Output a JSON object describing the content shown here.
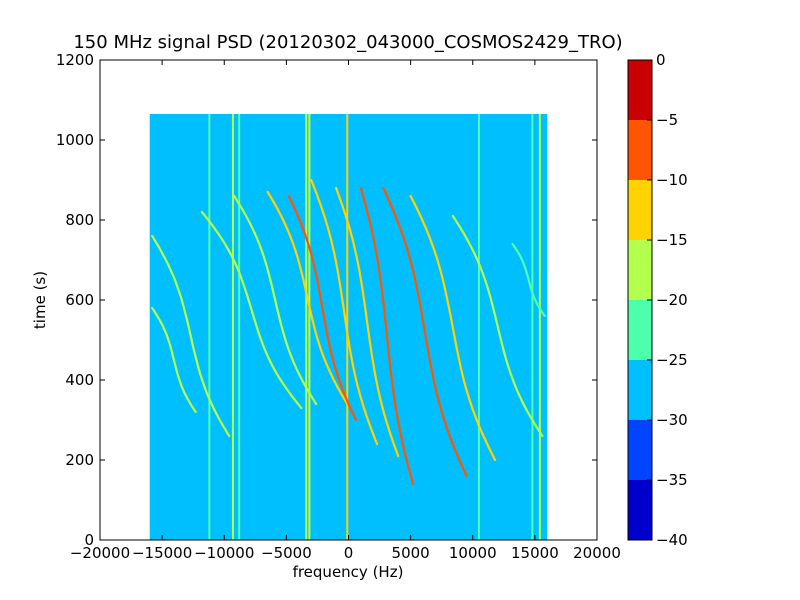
{
  "chart_data": {
    "type": "heatmap",
    "title": "150 MHz signal PSD (20120302_043000_COSMOS2429_TRO)",
    "xlabel": "frequency (Hz)",
    "ylabel": "time (s)",
    "xlim": [
      -20000,
      20000
    ],
    "ylim": [
      0,
      1200
    ],
    "xticks": [
      -20000,
      -15000,
      -10000,
      -5000,
      0,
      5000,
      10000,
      15000,
      20000
    ],
    "yticks": [
      0,
      200,
      400,
      600,
      800,
      1000,
      1200
    ],
    "data_extent": {
      "x": [
        -16000,
        16000
      ],
      "y": [
        0,
        1065
      ]
    },
    "colorbar": {
      "range": [
        -40,
        0
      ],
      "ticks": [
        0,
        -5,
        -10,
        -15,
        -20,
        -25,
        -30,
        -35,
        -40
      ],
      "levels": [
        {
          "from": -40,
          "to": -35,
          "color": "#0000cd"
        },
        {
          "from": -35,
          "to": -30,
          "color": "#0044ff"
        },
        {
          "from": -30,
          "to": -25,
          "color": "#00bfff"
        },
        {
          "from": -25,
          "to": -20,
          "color": "#4dffaa"
        },
        {
          "from": -20,
          "to": -15,
          "color": "#b3ff4d"
        },
        {
          "from": -15,
          "to": -10,
          "color": "#ffd200"
        },
        {
          "from": -10,
          "to": -5,
          "color": "#ff5500"
        },
        {
          "from": -5,
          "to": 0,
          "color": "#c80000"
        }
      ]
    },
    "background_level": -28,
    "constant_lines": [
      {
        "x": -11200,
        "level": -25
      },
      {
        "x": -9300,
        "level": -20
      },
      {
        "x": -8800,
        "level": -23
      },
      {
        "x": -3400,
        "level": -18
      },
      {
        "x": -3150,
        "level": -20
      },
      {
        "x": -100,
        "level": -15
      },
      {
        "x": 10500,
        "level": -23
      },
      {
        "x": 14800,
        "level": -22
      },
      {
        "x": 15400,
        "level": -20
      }
    ],
    "doppler_traces": [
      {
        "x_start": -15800,
        "x_end": -12300,
        "t_start": 580,
        "t_end": 320,
        "level": -18
      },
      {
        "x_start": -15800,
        "x_end": -9600,
        "t_start": 760,
        "t_end": 260,
        "level": -20
      },
      {
        "x_start": -11800,
        "x_end": -3800,
        "t_start": 820,
        "t_end": 330,
        "level": -18
      },
      {
        "x_start": -9200,
        "x_end": -2600,
        "t_start": 860,
        "t_end": 340,
        "level": -18
      },
      {
        "x_start": -6500,
        "x_end": -100,
        "t_start": 870,
        "t_end": 340,
        "level": -12
      },
      {
        "x_start": -4800,
        "x_end": 600,
        "t_start": 860,
        "t_end": 300,
        "level": -10
      },
      {
        "x_start": -3000,
        "x_end": 2300,
        "t_start": 900,
        "t_end": 240,
        "level": -15
      },
      {
        "x_start": -1000,
        "x_end": 4000,
        "t_start": 880,
        "t_end": 210,
        "level": -15
      },
      {
        "x_start": 1000,
        "x_end": 5200,
        "t_start": 880,
        "t_end": 140,
        "level": -8
      },
      {
        "x_start": 2800,
        "x_end": 9500,
        "t_start": 880,
        "t_end": 160,
        "level": -10
      },
      {
        "x_start": 5000,
        "x_end": 11800,
        "t_start": 860,
        "t_end": 200,
        "level": -15
      },
      {
        "x_start": 8400,
        "x_end": 15600,
        "t_start": 810,
        "t_end": 260,
        "level": -20
      },
      {
        "x_start": 13200,
        "x_end": 15800,
        "t_start": 740,
        "t_end": 560,
        "level": -22
      }
    ]
  }
}
